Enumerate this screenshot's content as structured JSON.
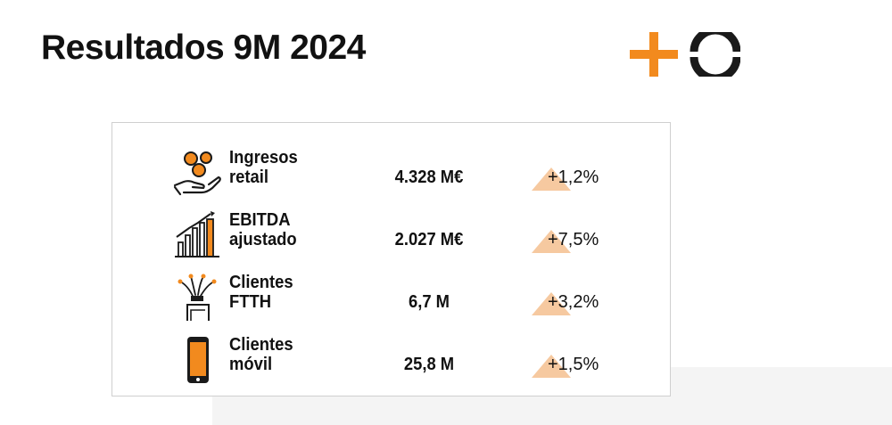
{
  "title": "Resultados 9M 2024",
  "colors": {
    "accent": "#f28a1e",
    "triangle": "#f6c9a0",
    "dark": "#1a1a1a"
  },
  "rows": [
    {
      "icon": "coins-hand-icon",
      "label_line1": "Ingresos",
      "label_line2": "retail",
      "value": "4.328 M€",
      "change": "+1,2%"
    },
    {
      "icon": "bar-chart-growth-icon",
      "label_line1": "EBITDA",
      "label_line2": "ajustado",
      "value": "2.027 M€",
      "change": "+7,5%"
    },
    {
      "icon": "fiber-optic-icon",
      "label_line1": "Clientes",
      "label_line2": "FTTH",
      "value": "6,7 M",
      "change": "+3,2%"
    },
    {
      "icon": "smartphone-icon",
      "label_line1": "Clientes",
      "label_line2": "móvil",
      "value": "25,8 M",
      "change": "+1,5%"
    }
  ]
}
